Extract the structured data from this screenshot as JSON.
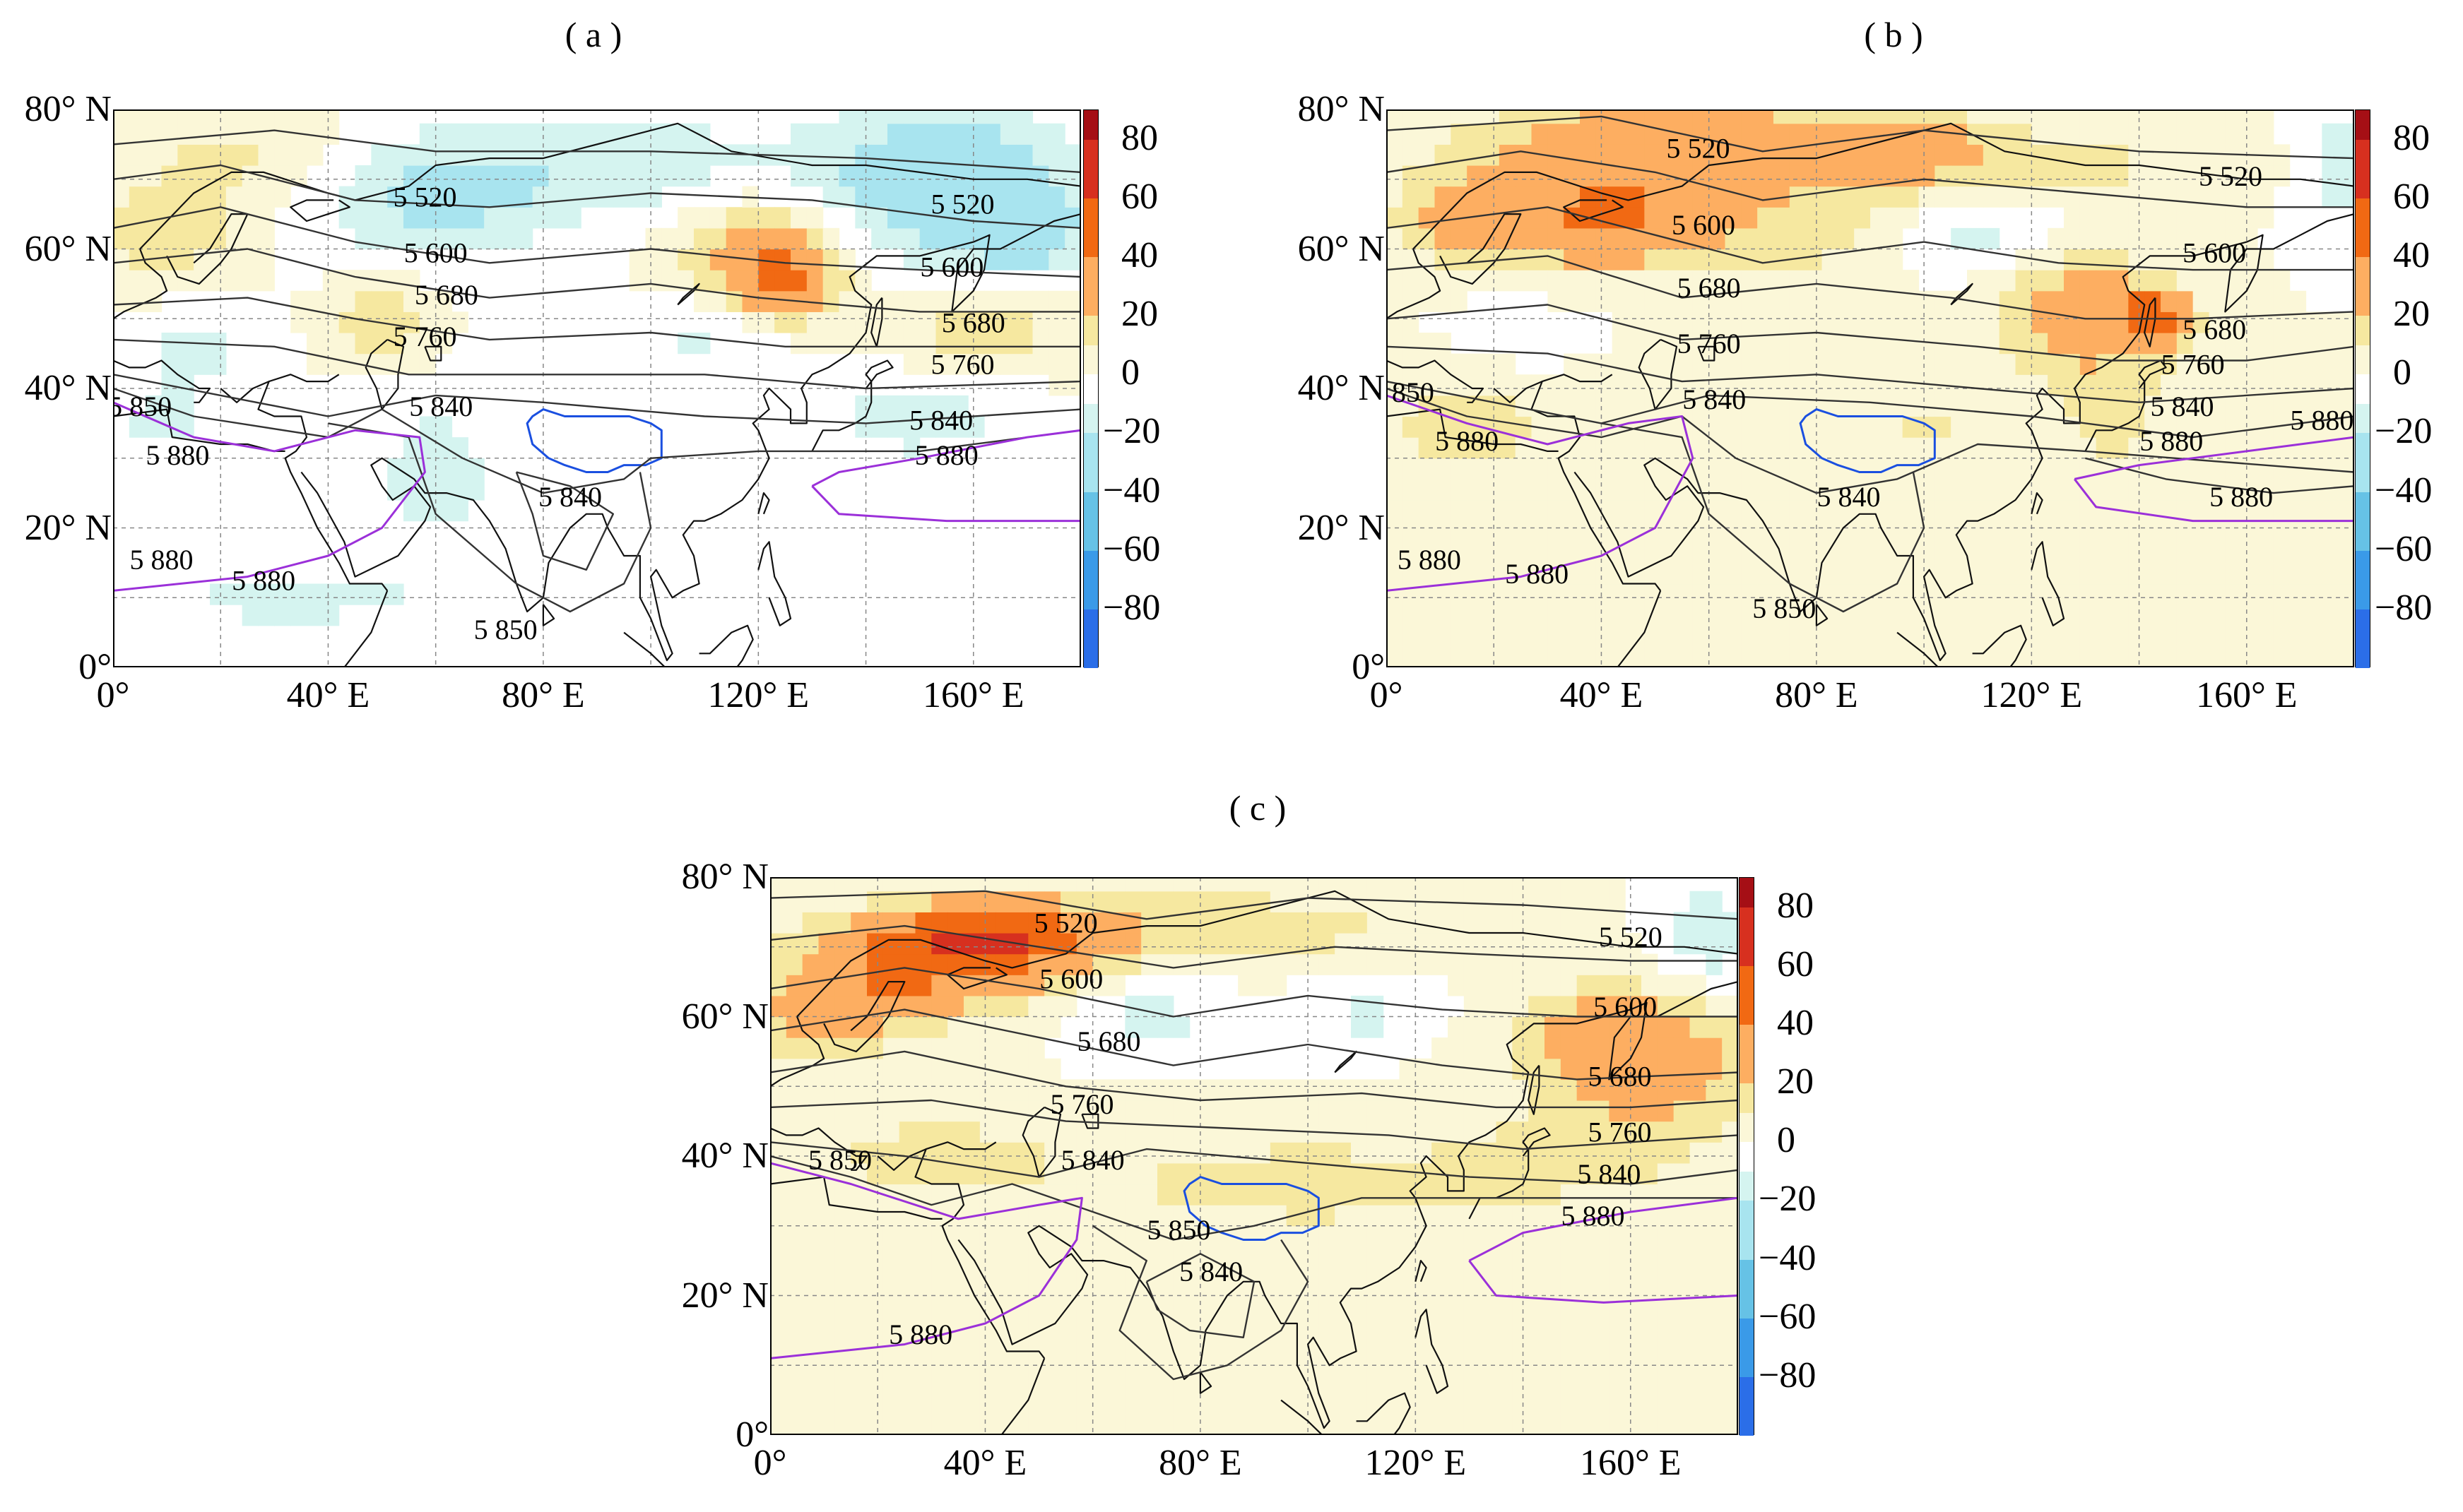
{
  "figure": {
    "panels": [
      {
        "id": "a",
        "title": "( a )"
      },
      {
        "id": "b",
        "title": "( b )"
      },
      {
        "id": "c",
        "title": "( c )"
      }
    ]
  },
  "chart_data": [
    {
      "type": "heatmap",
      "panel": "a",
      "title": "( a )",
      "x_ticks": [
        "0°",
        "40° E",
        "80° E",
        "120° E",
        "160° E"
      ],
      "y_ticks": [
        "80° N",
        "60° N",
        "40° N",
        "20° N",
        "0°"
      ],
      "xlim": [
        0,
        180
      ],
      "ylim": [
        0,
        80
      ],
      "colorbar": {
        "ticks": [
          "80",
          "60",
          "40",
          "20",
          "0",
          "−20",
          "−40",
          "−60",
          "−80"
        ],
        "range": [
          -100,
          90
        ]
      },
      "contour_labels": [
        {
          "text": "5 520",
          "lon": 58,
          "lat": 67
        },
        {
          "text": "5 520",
          "lon": 158,
          "lat": 66
        },
        {
          "text": "5 600",
          "lon": 60,
          "lat": 59
        },
        {
          "text": "5 600",
          "lon": 156,
          "lat": 57
        },
        {
          "text": "5 680",
          "lon": 62,
          "lat": 53
        },
        {
          "text": "5 680",
          "lon": 160,
          "lat": 49
        },
        {
          "text": "5 760",
          "lon": 58,
          "lat": 47
        },
        {
          "text": "5 760",
          "lon": 158,
          "lat": 43
        },
        {
          "text": "5 850",
          "lon": 5,
          "lat": 37
        },
        {
          "text": "5 840",
          "lon": 61,
          "lat": 37
        },
        {
          "text": "5 840",
          "lon": 154,
          "lat": 35
        },
        {
          "text": "5 880",
          "lon": 12,
          "lat": 30
        },
        {
          "text": "5 880",
          "lon": 155,
          "lat": 30
        },
        {
          "text": "5 840",
          "lon": 85,
          "lat": 24
        },
        {
          "text": "5 880",
          "lon": 9,
          "lat": 15
        },
        {
          "text": "5 880",
          "lon": 28,
          "lat": 12
        },
        {
          "text": "5 850",
          "lon": 73,
          "lat": 5
        }
      ]
    },
    {
      "type": "heatmap",
      "panel": "b",
      "title": "( b )",
      "x_ticks": [
        "0°",
        "40° E",
        "80° E",
        "120° E",
        "160° E"
      ],
      "y_ticks": [
        "80° N",
        "60° N",
        "40° N",
        "20° N",
        "0°"
      ],
      "xlim": [
        0,
        180
      ],
      "ylim": [
        0,
        80
      ],
      "colorbar": {
        "ticks": [
          "80",
          "60",
          "40",
          "20",
          "0",
          "−20",
          "−40",
          "−60",
          "−80"
        ],
        "range": [
          -100,
          90
        ]
      },
      "contour_labels": [
        {
          "text": "5 520",
          "lon": 58,
          "lat": 74
        },
        {
          "text": "5 520",
          "lon": 157,
          "lat": 70
        },
        {
          "text": "5 600",
          "lon": 59,
          "lat": 63
        },
        {
          "text": "5 600",
          "lon": 154,
          "lat": 59
        },
        {
          "text": "5 680",
          "lon": 60,
          "lat": 54
        },
        {
          "text": "5 680",
          "lon": 154,
          "lat": 48
        },
        {
          "text": "5 760",
          "lon": 60,
          "lat": 46
        },
        {
          "text": "5 760",
          "lon": 150,
          "lat": 43
        },
        {
          "text": "5 850",
          "lon": 3,
          "lat": 39
        },
        {
          "text": "5 840",
          "lon": 61,
          "lat": 38
        },
        {
          "text": "5 840",
          "lon": 148,
          "lat": 37
        },
        {
          "text": "5 880",
          "lon": 174,
          "lat": 35
        },
        {
          "text": "5 880",
          "lon": 15,
          "lat": 32
        },
        {
          "text": "5 880",
          "lon": 146,
          "lat": 32
        },
        {
          "text": "5 840",
          "lon": 86,
          "lat": 24
        },
        {
          "text": "5 880",
          "lon": 159,
          "lat": 24
        },
        {
          "text": "5 880",
          "lon": 8,
          "lat": 15
        },
        {
          "text": "5 880",
          "lon": 28,
          "lat": 13
        },
        {
          "text": "5 850",
          "lon": 74,
          "lat": 8
        }
      ]
    },
    {
      "type": "heatmap",
      "panel": "c",
      "title": "( c )",
      "x_ticks": [
        "0°",
        "40° E",
        "80° E",
        "120° E",
        "160° E"
      ],
      "y_ticks": [
        "80° N",
        "60° N",
        "40° N",
        "20° N",
        "0°"
      ],
      "xlim": [
        0,
        180
      ],
      "ylim": [
        0,
        80
      ],
      "colorbar": {
        "ticks": [
          "80",
          "60",
          "40",
          "20",
          "0",
          "−20",
          "−40",
          "−60",
          "−80"
        ],
        "range": [
          -100,
          90
        ]
      },
      "contour_labels": [
        {
          "text": "5 520",
          "lon": 55,
          "lat": 73
        },
        {
          "text": "5 520",
          "lon": 160,
          "lat": 71
        },
        {
          "text": "5 600",
          "lon": 56,
          "lat": 65
        },
        {
          "text": "5 600",
          "lon": 159,
          "lat": 61
        },
        {
          "text": "5 680",
          "lon": 63,
          "lat": 56
        },
        {
          "text": "5 680",
          "lon": 158,
          "lat": 51
        },
        {
          "text": "5 760",
          "lon": 58,
          "lat": 47
        },
        {
          "text": "5 760",
          "lon": 158,
          "lat": 43
        },
        {
          "text": "5 850",
          "lon": 13,
          "lat": 39
        },
        {
          "text": "5 840",
          "lon": 60,
          "lat": 39
        },
        {
          "text": "5 840",
          "lon": 156,
          "lat": 37
        },
        {
          "text": "5 880",
          "lon": 153,
          "lat": 31
        },
        {
          "text": "5 850",
          "lon": 76,
          "lat": 29
        },
        {
          "text": "5 840",
          "lon": 82,
          "lat": 23
        },
        {
          "text": "5 880",
          "lon": 28,
          "lat": 14
        }
      ]
    }
  ],
  "colors": {
    "scale": [
      {
        "min": 80,
        "max": 90,
        "color": "#a50f15"
      },
      {
        "min": 60,
        "max": 80,
        "color": "#d7301f"
      },
      {
        "min": 40,
        "max": 60,
        "color": "#f16913"
      },
      {
        "min": 20,
        "max": 40,
        "color": "#fdae61"
      },
      {
        "min": 10,
        "max": 20,
        "color": "#f6e8a0"
      },
      {
        "min": 0,
        "max": 10,
        "color": "#fbf7d8"
      },
      {
        "min": -10,
        "max": 0,
        "color": "#ffffff"
      },
      {
        "min": -20,
        "max": -10,
        "color": "#d5f4f0"
      },
      {
        "min": -40,
        "max": -20,
        "color": "#a8e4ef"
      },
      {
        "min": -60,
        "max": -40,
        "color": "#66c2e6"
      },
      {
        "min": -80,
        "max": -60,
        "color": "#3a9ae8"
      },
      {
        "min": -100,
        "max": -80,
        "color": "#2b6ee8"
      }
    ],
    "line_contour": "#333333",
    "line_5880": "#9b30d9",
    "plateau": "#1a4fe0",
    "coast": "#111111"
  }
}
